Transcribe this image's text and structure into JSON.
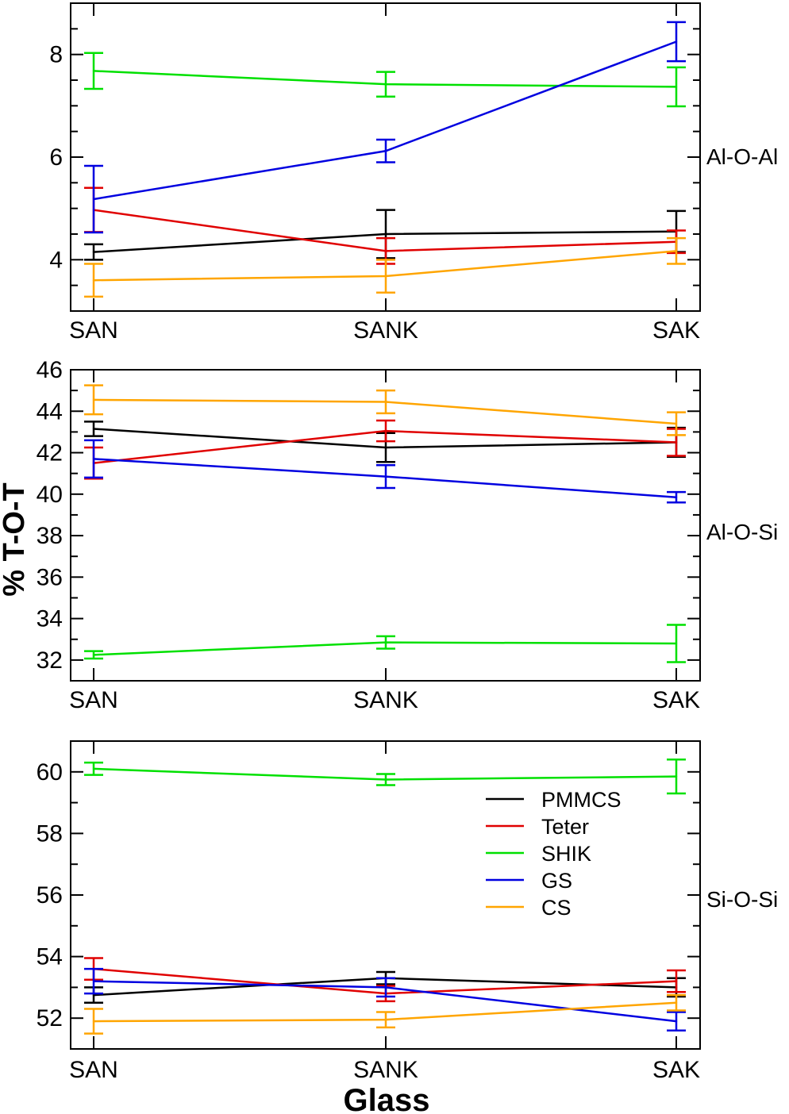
{
  "chart_data": {
    "type": "line",
    "ylabel": "% T-O-T",
    "xlabel": "Glass",
    "categories": [
      "SAN",
      "SANK",
      "SAK"
    ],
    "colors": {
      "PMMCS": "#000000",
      "Teter": "#e00000",
      "SHIK": "#00e000",
      "GS": "#0000e0",
      "CS": "#ffa500"
    },
    "legend": {
      "placement": "upper-right of bottom panel",
      "entries": [
        "PMMCS",
        "Teter",
        "SHIK",
        "GS",
        "CS"
      ]
    },
    "panels": [
      {
        "label": "Al-O-Al",
        "ylim": [
          3,
          9
        ],
        "major_ticks": [
          4,
          6,
          8
        ],
        "minor_step": 0.5,
        "series": [
          {
            "name": "PMMCS",
            "values": [
              4.15,
              4.5,
              4.55
            ],
            "errors": [
              0.15,
              0.47,
              0.4
            ]
          },
          {
            "name": "Teter",
            "values": [
              4.97,
              4.17,
              4.35
            ],
            "errors": [
              0.43,
              0.25,
              0.22
            ]
          },
          {
            "name": "SHIK",
            "values": [
              7.68,
              7.42,
              7.37
            ],
            "errors": [
              0.35,
              0.24,
              0.38
            ]
          },
          {
            "name": "GS",
            "values": [
              5.18,
              6.12,
              8.25
            ],
            "errors": [
              0.65,
              0.22,
              0.38
            ]
          },
          {
            "name": "CS",
            "values": [
              3.6,
              3.68,
              4.17
            ],
            "errors": [
              0.32,
              0.32,
              0.25
            ]
          }
        ]
      },
      {
        "label": "Al-O-Si",
        "ylim": [
          31,
          46
        ],
        "major_ticks": [
          32,
          34,
          36,
          38,
          40,
          42,
          44,
          46
        ],
        "minor_step": 1,
        "series": [
          {
            "name": "PMMCS",
            "values": [
              43.15,
              42.25,
              42.5
            ],
            "errors": [
              0.35,
              0.7,
              0.7
            ]
          },
          {
            "name": "Teter",
            "values": [
              41.5,
              43.05,
              42.5
            ],
            "errors": [
              0.75,
              0.5,
              0.65
            ]
          },
          {
            "name": "SHIK",
            "values": [
              32.25,
              32.85,
              32.8
            ],
            "errors": [
              0.18,
              0.3,
              0.9
            ]
          },
          {
            "name": "GS",
            "values": [
              41.7,
              40.85,
              39.85
            ],
            "errors": [
              0.9,
              0.55,
              0.25
            ]
          },
          {
            "name": "CS",
            "values": [
              44.55,
              44.45,
              43.4
            ],
            "errors": [
              0.7,
              0.55,
              0.55
            ]
          }
        ]
      },
      {
        "label": "Si-O-Si",
        "ylim": [
          51,
          61
        ],
        "major_ticks": [
          52,
          54,
          56,
          58,
          60
        ],
        "minor_step": 1,
        "series": [
          {
            "name": "PMMCS",
            "values": [
              52.75,
              53.3,
              53.0
            ],
            "errors": [
              0.25,
              0.2,
              0.3
            ]
          },
          {
            "name": "Teter",
            "values": [
              53.6,
              52.8,
              53.2
            ],
            "errors": [
              0.35,
              0.25,
              0.35
            ]
          },
          {
            "name": "SHIK",
            "values": [
              60.1,
              59.75,
              59.85
            ],
            "errors": [
              0.2,
              0.18,
              0.55
            ]
          },
          {
            "name": "GS",
            "values": [
              53.2,
              53.0,
              51.9
            ],
            "errors": [
              0.4,
              0.3,
              0.3
            ]
          },
          {
            "name": "CS",
            "values": [
              51.9,
              51.95,
              52.5
            ],
            "errors": [
              0.4,
              0.25,
              0.25
            ]
          }
        ]
      }
    ]
  }
}
